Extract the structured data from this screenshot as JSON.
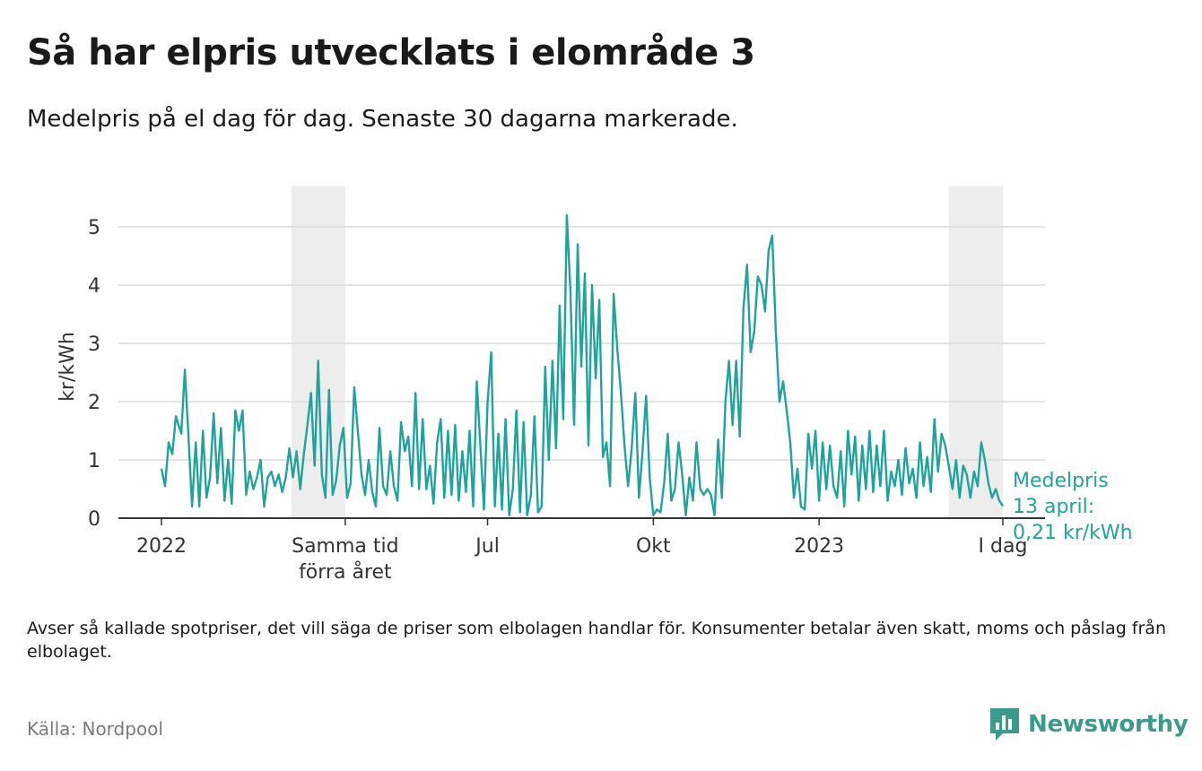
{
  "header": {
    "title": "Så har elpris utvecklats i elområde 3",
    "subtitle": "Medelpris på el dag för dag.  Senaste 30 dagarna markerade."
  },
  "footer": {
    "note": "Avser så kallade spotpriser, det vill säga de priser som elbolagen handlar för. Konsumenter betalar även skatt, moms och påslag från elbolaget.",
    "source": "Källa: Nordpool",
    "brand": "Newsworthy",
    "brand_icon": "bar-chart-speech-bubble-icon"
  },
  "chart_data": {
    "type": "line",
    "ylabel": "kr/kWh",
    "xlabel": "",
    "ylim": [
      0,
      5.7
    ],
    "y_ticks": [
      0,
      1,
      2,
      3,
      4,
      5
    ],
    "x_range": [
      "2022-01-01",
      "2023-04-13"
    ],
    "x_ticks": [
      {
        "date": "2022-01-01",
        "label": "2022"
      },
      {
        "date": "2022-04-13",
        "label": "Samma tid\nförra året"
      },
      {
        "date": "2022-07-01",
        "label": "Jul"
      },
      {
        "date": "2022-10-01",
        "label": "Okt"
      },
      {
        "date": "2023-01-01",
        "label": "2023"
      },
      {
        "date": "2023-04-13",
        "label": "I dag"
      }
    ],
    "highlight_bands": [
      {
        "start": "2022-03-14",
        "end": "2022-04-13"
      },
      {
        "start": "2023-03-14",
        "end": "2023-04-13"
      }
    ],
    "grid": true,
    "line_color": "#1fa39a",
    "band_color": "#ededed",
    "series": [
      {
        "name": "Medelpris",
        "points": [
          [
            "2022-01-01",
            0.85
          ],
          [
            "2022-01-03",
            0.55
          ],
          [
            "2022-01-05",
            1.3
          ],
          [
            "2022-01-07",
            1.1
          ],
          [
            "2022-01-09",
            1.75
          ],
          [
            "2022-01-12",
            1.45
          ],
          [
            "2022-01-14",
            2.55
          ],
          [
            "2022-01-16",
            1.4
          ],
          [
            "2022-01-18",
            0.2
          ],
          [
            "2022-01-20",
            1.3
          ],
          [
            "2022-01-22",
            0.2
          ],
          [
            "2022-01-24",
            1.5
          ],
          [
            "2022-01-26",
            0.35
          ],
          [
            "2022-01-28",
            0.7
          ],
          [
            "2022-01-30",
            1.8
          ],
          [
            "2022-02-01",
            0.6
          ],
          [
            "2022-02-03",
            1.55
          ],
          [
            "2022-02-05",
            0.3
          ],
          [
            "2022-02-07",
            1.0
          ],
          [
            "2022-02-09",
            0.25
          ],
          [
            "2022-02-11",
            1.85
          ],
          [
            "2022-02-13",
            1.5
          ],
          [
            "2022-02-15",
            1.85
          ],
          [
            "2022-02-17",
            0.4
          ],
          [
            "2022-02-19",
            0.8
          ],
          [
            "2022-02-21",
            0.5
          ],
          [
            "2022-02-23",
            0.7
          ],
          [
            "2022-02-25",
            1.0
          ],
          [
            "2022-02-27",
            0.2
          ],
          [
            "2022-03-01",
            0.7
          ],
          [
            "2022-03-03",
            0.8
          ],
          [
            "2022-03-05",
            0.55
          ],
          [
            "2022-03-07",
            0.75
          ],
          [
            "2022-03-09",
            0.45
          ],
          [
            "2022-03-11",
            0.7
          ],
          [
            "2022-03-13",
            1.2
          ],
          [
            "2022-03-15",
            0.7
          ],
          [
            "2022-03-17",
            1.15
          ],
          [
            "2022-03-19",
            0.5
          ],
          [
            "2022-03-21",
            1.1
          ],
          [
            "2022-03-23",
            1.6
          ],
          [
            "2022-03-25",
            2.15
          ],
          [
            "2022-03-27",
            0.9
          ],
          [
            "2022-03-29",
            2.7
          ],
          [
            "2022-03-31",
            0.75
          ],
          [
            "2022-04-02",
            0.35
          ],
          [
            "2022-04-04",
            2.2
          ],
          [
            "2022-04-06",
            0.4
          ],
          [
            "2022-04-08",
            0.65
          ],
          [
            "2022-04-10",
            1.25
          ],
          [
            "2022-04-12",
            1.55
          ],
          [
            "2022-04-14",
            0.35
          ],
          [
            "2022-04-16",
            0.6
          ],
          [
            "2022-04-18",
            2.25
          ],
          [
            "2022-04-20",
            1.5
          ],
          [
            "2022-04-22",
            0.75
          ],
          [
            "2022-04-24",
            0.4
          ],
          [
            "2022-04-26",
            1.0
          ],
          [
            "2022-04-28",
            0.45
          ],
          [
            "2022-04-30",
            0.2
          ],
          [
            "2022-05-02",
            1.55
          ],
          [
            "2022-05-04",
            0.55
          ],
          [
            "2022-05-06",
            0.4
          ],
          [
            "2022-05-08",
            1.15
          ],
          [
            "2022-05-10",
            0.55
          ],
          [
            "2022-05-12",
            0.3
          ],
          [
            "2022-05-14",
            1.65
          ],
          [
            "2022-05-16",
            1.15
          ],
          [
            "2022-05-18",
            1.4
          ],
          [
            "2022-05-20",
            0.55
          ],
          [
            "2022-05-22",
            2.15
          ],
          [
            "2022-05-24",
            0.5
          ],
          [
            "2022-05-26",
            1.7
          ],
          [
            "2022-05-28",
            0.5
          ],
          [
            "2022-05-30",
            0.9
          ],
          [
            "2022-06-01",
            0.25
          ],
          [
            "2022-06-03",
            1.3
          ],
          [
            "2022-06-05",
            1.7
          ],
          [
            "2022-06-07",
            0.35
          ],
          [
            "2022-06-09",
            1.5
          ],
          [
            "2022-06-11",
            0.4
          ],
          [
            "2022-06-13",
            1.6
          ],
          [
            "2022-06-15",
            0.3
          ],
          [
            "2022-06-17",
            1.15
          ],
          [
            "2022-06-19",
            0.45
          ],
          [
            "2022-06-21",
            1.5
          ],
          [
            "2022-06-23",
            0.2
          ],
          [
            "2022-06-25",
            2.35
          ],
          [
            "2022-06-27",
            1.25
          ],
          [
            "2022-06-29",
            0.15
          ],
          [
            "2022-07-01",
            2.0
          ],
          [
            "2022-07-03",
            2.85
          ],
          [
            "2022-07-05",
            0.2
          ],
          [
            "2022-07-07",
            1.45
          ],
          [
            "2022-07-09",
            0.15
          ],
          [
            "2022-07-11",
            1.7
          ],
          [
            "2022-07-13",
            0.05
          ],
          [
            "2022-07-15",
            0.5
          ],
          [
            "2022-07-17",
            1.85
          ],
          [
            "2022-07-19",
            0.1
          ],
          [
            "2022-07-21",
            1.65
          ],
          [
            "2022-07-23",
            0.05
          ],
          [
            "2022-07-25",
            0.4
          ],
          [
            "2022-07-27",
            1.75
          ],
          [
            "2022-07-29",
            0.1
          ],
          [
            "2022-07-31",
            0.2
          ],
          [
            "2022-08-02",
            2.6
          ],
          [
            "2022-08-04",
            1.0
          ],
          [
            "2022-08-06",
            2.7
          ],
          [
            "2022-08-08",
            1.2
          ],
          [
            "2022-08-10",
            3.65
          ],
          [
            "2022-08-12",
            1.7
          ],
          [
            "2022-08-14",
            5.2
          ],
          [
            "2022-08-16",
            3.9
          ],
          [
            "2022-08-18",
            1.6
          ],
          [
            "2022-08-20",
            4.7
          ],
          [
            "2022-08-22",
            2.6
          ],
          [
            "2022-08-24",
            4.2
          ],
          [
            "2022-08-26",
            1.25
          ],
          [
            "2022-08-28",
            4.0
          ],
          [
            "2022-08-30",
            2.4
          ],
          [
            "2022-09-01",
            3.75
          ],
          [
            "2022-09-03",
            1.05
          ],
          [
            "2022-09-05",
            1.3
          ],
          [
            "2022-09-07",
            0.55
          ],
          [
            "2022-09-09",
            3.85
          ],
          [
            "2022-09-11",
            2.9
          ],
          [
            "2022-09-13",
            2.15
          ],
          [
            "2022-09-15",
            1.25
          ],
          [
            "2022-09-17",
            0.55
          ],
          [
            "2022-09-19",
            1.2
          ],
          [
            "2022-09-21",
            2.15
          ],
          [
            "2022-09-23",
            0.35
          ],
          [
            "2022-09-25",
            1.15
          ],
          [
            "2022-09-27",
            2.1
          ],
          [
            "2022-09-29",
            0.7
          ],
          [
            "2022-10-01",
            0.05
          ],
          [
            "2022-10-03",
            0.15
          ],
          [
            "2022-10-05",
            0.1
          ],
          [
            "2022-10-07",
            0.6
          ],
          [
            "2022-10-09",
            1.45
          ],
          [
            "2022-10-11",
            0.3
          ],
          [
            "2022-10-13",
            0.5
          ],
          [
            "2022-10-15",
            1.3
          ],
          [
            "2022-10-17",
            0.75
          ],
          [
            "2022-10-19",
            0.05
          ],
          [
            "2022-10-21",
            0.7
          ],
          [
            "2022-10-23",
            0.3
          ],
          [
            "2022-10-25",
            1.3
          ],
          [
            "2022-10-27",
            0.5
          ],
          [
            "2022-10-29",
            0.4
          ],
          [
            "2022-10-31",
            0.5
          ],
          [
            "2022-11-02",
            0.4
          ],
          [
            "2022-11-04",
            0.05
          ],
          [
            "2022-11-06",
            1.35
          ],
          [
            "2022-11-08",
            0.35
          ],
          [
            "2022-11-10",
            2.0
          ],
          [
            "2022-11-12",
            2.7
          ],
          [
            "2022-11-14",
            1.6
          ],
          [
            "2022-11-16",
            2.7
          ],
          [
            "2022-11-18",
            1.4
          ],
          [
            "2022-11-20",
            3.6
          ],
          [
            "2022-11-22",
            4.35
          ],
          [
            "2022-11-24",
            2.85
          ],
          [
            "2022-11-26",
            3.2
          ],
          [
            "2022-11-28",
            4.15
          ],
          [
            "2022-11-30",
            4.0
          ],
          [
            "2022-12-02",
            3.55
          ],
          [
            "2022-12-04",
            4.6
          ],
          [
            "2022-12-06",
            4.85
          ],
          [
            "2022-12-08",
            3.2
          ],
          [
            "2022-12-10",
            2.0
          ],
          [
            "2022-12-12",
            2.35
          ],
          [
            "2022-12-14",
            1.85
          ],
          [
            "2022-12-16",
            1.3
          ],
          [
            "2022-12-18",
            0.35
          ],
          [
            "2022-12-20",
            0.85
          ],
          [
            "2022-12-22",
            0.2
          ],
          [
            "2022-12-24",
            0.15
          ],
          [
            "2022-12-26",
            1.45
          ],
          [
            "2022-12-28",
            0.85
          ],
          [
            "2022-12-30",
            1.5
          ],
          [
            "2023-01-01",
            0.3
          ],
          [
            "2023-01-03",
            1.3
          ],
          [
            "2023-01-05",
            0.5
          ],
          [
            "2023-01-07",
            1.25
          ],
          [
            "2023-01-09",
            0.55
          ],
          [
            "2023-01-11",
            0.35
          ],
          [
            "2023-01-13",
            1.15
          ],
          [
            "2023-01-15",
            0.2
          ],
          [
            "2023-01-17",
            1.5
          ],
          [
            "2023-01-19",
            0.75
          ],
          [
            "2023-01-21",
            1.4
          ],
          [
            "2023-01-23",
            0.3
          ],
          [
            "2023-01-25",
            1.25
          ],
          [
            "2023-01-27",
            0.5
          ],
          [
            "2023-01-29",
            1.5
          ],
          [
            "2023-01-31",
            0.45
          ],
          [
            "2023-02-02",
            1.25
          ],
          [
            "2023-02-04",
            0.55
          ],
          [
            "2023-02-06",
            1.5
          ],
          [
            "2023-02-08",
            0.3
          ],
          [
            "2023-02-10",
            0.8
          ],
          [
            "2023-02-12",
            0.55
          ],
          [
            "2023-02-14",
            1.0
          ],
          [
            "2023-02-16",
            0.4
          ],
          [
            "2023-02-18",
            1.2
          ],
          [
            "2023-02-20",
            0.6
          ],
          [
            "2023-02-22",
            0.85
          ],
          [
            "2023-02-24",
            0.35
          ],
          [
            "2023-02-26",
            1.3
          ],
          [
            "2023-02-28",
            0.55
          ],
          [
            "2023-03-02",
            1.05
          ],
          [
            "2023-03-04",
            0.45
          ],
          [
            "2023-03-06",
            1.7
          ],
          [
            "2023-03-08",
            0.8
          ],
          [
            "2023-03-10",
            1.45
          ],
          [
            "2023-03-12",
            1.25
          ],
          [
            "2023-03-14",
            0.9
          ],
          [
            "2023-03-16",
            0.5
          ],
          [
            "2023-03-18",
            1.0
          ],
          [
            "2023-03-20",
            0.35
          ],
          [
            "2023-03-22",
            0.9
          ],
          [
            "2023-03-24",
            0.75
          ],
          [
            "2023-03-26",
            0.35
          ],
          [
            "2023-03-28",
            0.8
          ],
          [
            "2023-03-30",
            0.55
          ],
          [
            "2023-04-01",
            1.3
          ],
          [
            "2023-04-03",
            1.0
          ],
          [
            "2023-04-05",
            0.6
          ],
          [
            "2023-04-07",
            0.35
          ],
          [
            "2023-04-09",
            0.5
          ],
          [
            "2023-04-11",
            0.3
          ],
          [
            "2023-04-13",
            0.21
          ]
        ]
      }
    ],
    "annotation": {
      "lines": [
        "Medelpris",
        "13 april:",
        "0,21 kr/kWh"
      ],
      "date": "2023-04-13",
      "value": 0.21
    }
  }
}
